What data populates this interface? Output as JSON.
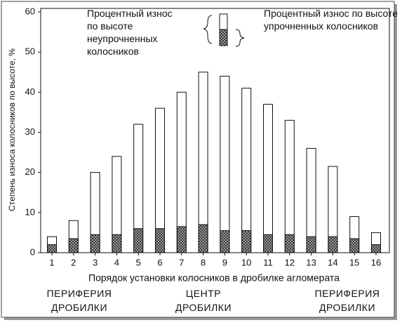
{
  "chart_data": {
    "type": "bar",
    "y_label": "Степень износа колосников по высоте, %",
    "x_label": "Порядок установки колосников в дробилке агломерата",
    "categories": [
      "1",
      "2",
      "3",
      "4",
      "5",
      "6",
      "7",
      "8",
      "9",
      "10",
      "11",
      "12",
      "13",
      "14",
      "15",
      "16"
    ],
    "series": [
      {
        "name": "Процентный износ\nпо высоте\nнеупрочненных\nколосников",
        "color": "#ffffff",
        "values": [
          4,
          8,
          20,
          24,
          32,
          36,
          40,
          45,
          44,
          41,
          37,
          33,
          26,
          21.5,
          9,
          5
        ]
      },
      {
        "name": "Процентный износ по высоте\nупрочненных колосников",
        "color": "#333333",
        "values": [
          2,
          3.5,
          4.5,
          4.5,
          6,
          6,
          6.5,
          7,
          5.5,
          5.5,
          4.5,
          4.5,
          4,
          4,
          3.5,
          2
        ]
      }
    ],
    "annotations": [
      "ПЕРИФЕРИЯ\nДРОБИЛКИ",
      "ЦЕНТР\nДРОБИЛКИ",
      "ПЕРИФЕРИЯ\nДРОБИЛКИ"
    ],
    "ylim": [
      0,
      60
    ],
    "yticks": [
      0,
      10,
      20,
      30,
      40,
      50,
      60
    ]
  }
}
